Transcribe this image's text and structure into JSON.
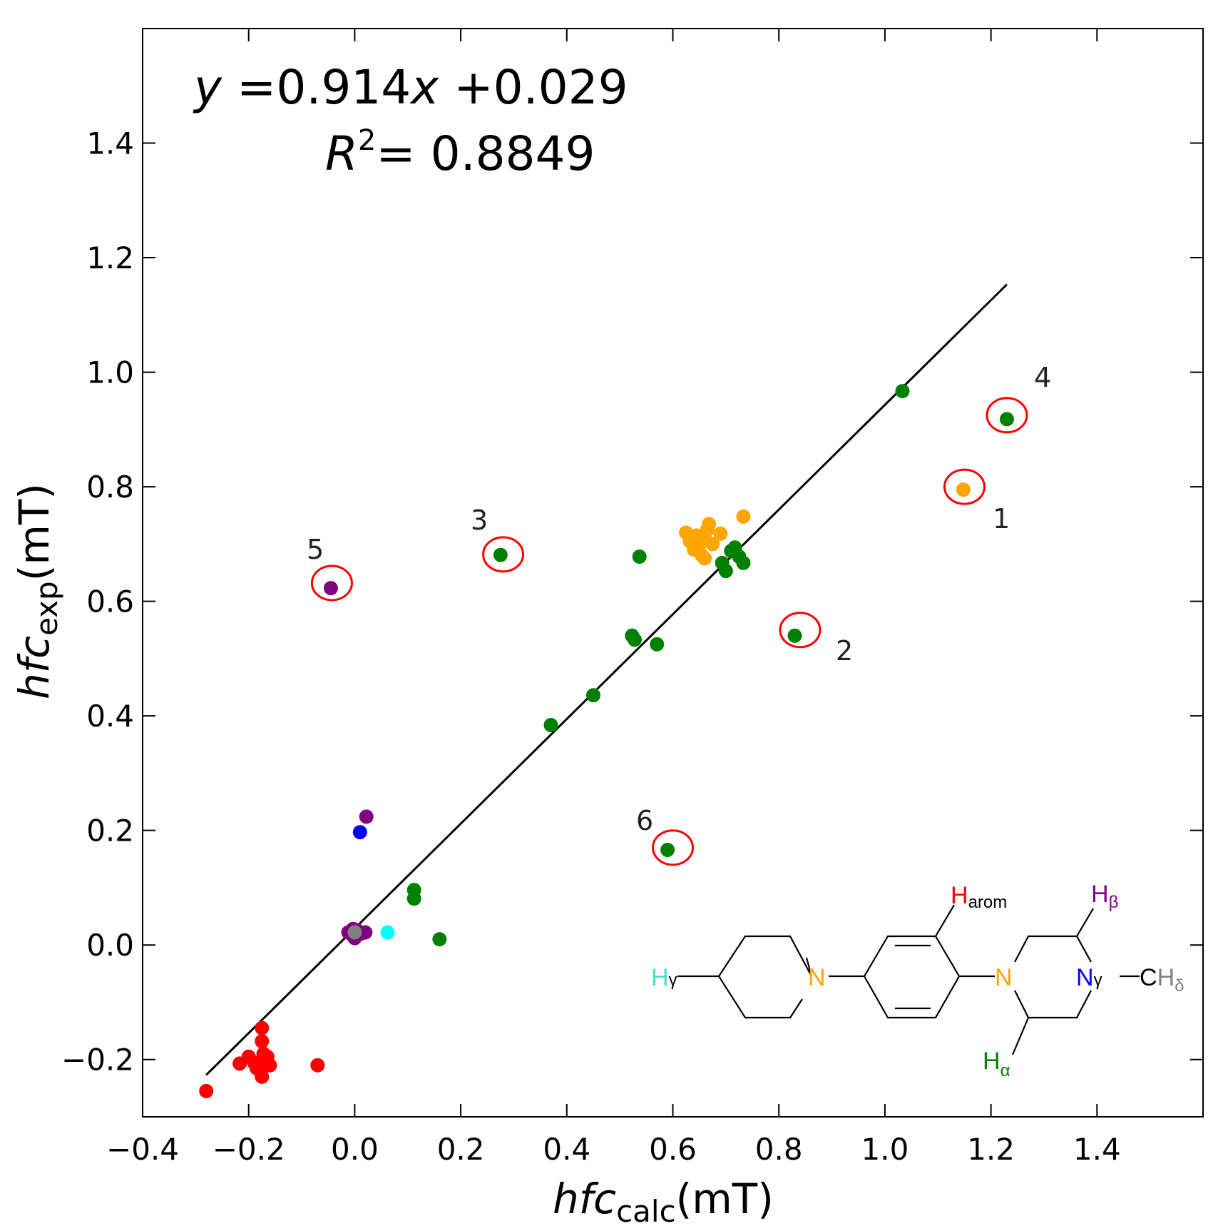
{
  "chart_data": {
    "type": "scatter",
    "xlabel": {
      "main": "hfc",
      "sub": "calc",
      "unit": "(mT)"
    },
    "ylabel": {
      "main": "hfc",
      "sub": "exp",
      "unit": "(mT)"
    },
    "xlim": [
      -0.4,
      1.6
    ],
    "ylim": [
      -0.3,
      1.6
    ],
    "x_ticks": [
      -0.4,
      -0.2,
      0.0,
      0.2,
      0.4,
      0.6,
      0.8,
      1.0,
      1.2,
      1.4
    ],
    "x_tick_labels": [
      "−0.4",
      "−0.2",
      "0.0",
      "0.2",
      "0.4",
      "0.6",
      "0.8",
      "1.0",
      "1.2",
      "1.4"
    ],
    "y_ticks": [
      -0.2,
      0.0,
      0.2,
      0.4,
      0.6,
      0.8,
      1.0,
      1.2,
      1.4
    ],
    "y_tick_labels": [
      "−0.2",
      "0.0",
      "0.2",
      "0.4",
      "0.6",
      "0.8",
      "1.0",
      "1.2",
      "1.4"
    ],
    "grid": false,
    "equation": {
      "y": "y",
      "eq": " =0.914",
      "x": "x",
      "rest": " +0.029"
    },
    "r2": {
      "R": "R",
      "sup": "2",
      "rest": "= 0.8849"
    },
    "fit": {
      "slope": 0.914,
      "intercept": 0.029,
      "x_range": [
        -0.28,
        1.23
      ]
    },
    "colors": {
      "H_arom": "#ff0000",
      "H_alpha": "#008000",
      "N_alpha": "#ffa500",
      "H_beta": "#800080",
      "N_gamma": "#0000ff",
      "H_gamma": "#00ffff",
      "H_delta": "#808080",
      "circle": "#ff0000",
      "line": "#000000"
    },
    "series": [
      {
        "name": "H_arom",
        "color": "#ff0000",
        "points": [
          [
            -0.28,
            -0.255
          ],
          [
            -0.217,
            -0.207
          ],
          [
            -0.2,
            -0.195
          ],
          [
            -0.19,
            -0.205
          ],
          [
            -0.185,
            -0.215
          ],
          [
            -0.175,
            -0.145
          ],
          [
            -0.175,
            -0.168
          ],
          [
            -0.172,
            -0.19
          ],
          [
            -0.17,
            -0.2
          ],
          [
            -0.168,
            -0.208
          ],
          [
            -0.165,
            -0.195
          ],
          [
            -0.16,
            -0.21
          ],
          [
            -0.175,
            -0.23
          ],
          [
            -0.07,
            -0.21
          ]
        ]
      },
      {
        "name": "H_alpha",
        "color": "#008000",
        "points": [
          [
            1.033,
            0.967
          ],
          [
            1.23,
            0.918
          ],
          [
            0.83,
            0.54
          ],
          [
            0.275,
            0.681
          ],
          [
            0.59,
            0.166
          ],
          [
            0.37,
            0.384
          ],
          [
            0.45,
            0.436
          ],
          [
            0.523,
            0.54
          ],
          [
            0.528,
            0.533
          ],
          [
            0.57,
            0.525
          ],
          [
            0.537,
            0.678
          ],
          [
            0.693,
            0.667
          ],
          [
            0.7,
            0.653
          ],
          [
            0.71,
            0.688
          ],
          [
            0.717,
            0.694
          ],
          [
            0.725,
            0.678
          ],
          [
            0.733,
            0.667
          ],
          [
            0.112,
            0.096
          ],
          [
            0.112,
            0.081
          ],
          [
            0.16,
            0.01
          ]
        ]
      },
      {
        "name": "N_alpha",
        "color": "#ffa500",
        "points": [
          [
            1.148,
            0.795
          ],
          [
            0.733,
            0.748
          ],
          [
            0.625,
            0.72
          ],
          [
            0.632,
            0.705
          ],
          [
            0.64,
            0.69
          ],
          [
            0.645,
            0.715
          ],
          [
            0.65,
            0.7
          ],
          [
            0.655,
            0.68
          ],
          [
            0.66,
            0.71
          ],
          [
            0.665,
            0.725
          ],
          [
            0.668,
            0.735
          ],
          [
            0.675,
            0.7
          ],
          [
            0.69,
            0.718
          ],
          [
            0.66,
            0.675
          ],
          [
            0.648,
            0.695
          ],
          [
            0.638,
            0.712
          ]
        ]
      },
      {
        "name": "H_beta",
        "color": "#800080",
        "points": [
          [
            -0.045,
            0.623
          ],
          [
            0.022,
            0.224
          ],
          [
            -0.012,
            0.022
          ],
          [
            -0.005,
            0.018
          ],
          [
            0.0,
            0.012
          ],
          [
            0.005,
            0.025
          ],
          [
            0.012,
            0.02
          ],
          [
            0.02,
            0.022
          ],
          [
            -0.003,
            0.028
          ]
        ]
      },
      {
        "name": "N_gamma",
        "color": "#0000ff",
        "points": [
          [
            0.01,
            0.197
          ]
        ]
      },
      {
        "name": "H_gamma",
        "color": "#00ffff",
        "points": [
          [
            0.062,
            0.022
          ]
        ]
      },
      {
        "name": "H_delta",
        "color": "#808080",
        "points": [
          [
            0.0,
            0.022
          ]
        ]
      }
    ],
    "outliers": [
      {
        "label": "1",
        "x": 1.15,
        "y": 0.8
      },
      {
        "label": "2",
        "x": 0.84,
        "y": 0.55
      },
      {
        "label": "3",
        "x": 0.28,
        "y": 0.682
      },
      {
        "label": "4",
        "x": 1.23,
        "y": 0.925
      },
      {
        "label": "5",
        "x": -0.043,
        "y": 0.632
      },
      {
        "label": "6",
        "x": 0.6,
        "y": 0.17
      }
    ],
    "structure_labels": {
      "H_arom": {
        "main": "H",
        "sub": "arom"
      },
      "H_beta": {
        "main": "H",
        "sub": "β"
      },
      "H_gamma": {
        "main": "H",
        "sub": "γ"
      },
      "N_alpha": {
        "main": "N"
      },
      "N_alpha_2": {
        "main": "N"
      },
      "N_gamma": {
        "main": "N",
        "sub": "γ"
      },
      "CH_delta": {
        "c": "C",
        "main": "H",
        "sub": "δ"
      },
      "H_alpha": {
        "main": "H",
        "sub": "α"
      }
    }
  }
}
